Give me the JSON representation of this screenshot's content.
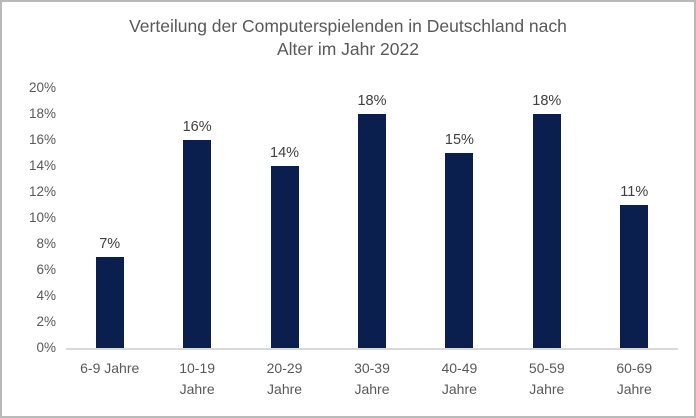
{
  "frame": {
    "background_color": "#ffffff",
    "border_color": "#b9b9b9"
  },
  "chart_data": {
    "type": "bar",
    "title": "Verteilung der Computerspielenden in Deutschland nach Alter im Jahr 2022",
    "title_lines": [
      "Verteilung der Computerspielenden in Deutschland nach",
      "Alter im Jahr 2022"
    ],
    "categories": [
      "6-9 Jahre",
      "10-19 Jahre",
      "20-29 Jahre",
      "30-39 Jahre",
      "40-49 Jahre",
      "50-59 Jahre",
      "60-69 Jahre"
    ],
    "category_labels_displayed": [
      "6-9 Jahre",
      "10-19\nJahre",
      "20-29\nJahre",
      "30-39\nJahre",
      "40-49\nJahre",
      "50-59\nJahre",
      "60-69\nJahre"
    ],
    "values": [
      7,
      16,
      14,
      18,
      15,
      18,
      11
    ],
    "data_labels": [
      "7%",
      "16%",
      "14%",
      "18%",
      "15%",
      "18%",
      "11%"
    ],
    "xlabel": "",
    "ylabel": "",
    "ylim": [
      0,
      20
    ],
    "ytick_step": 2,
    "yticks": [
      "0%",
      "2%",
      "4%",
      "6%",
      "8%",
      "10%",
      "12%",
      "14%",
      "16%",
      "18%",
      "20%"
    ],
    "grid": false,
    "legend": false,
    "unit": "%",
    "colors": {
      "bar": "#0b1f4e",
      "axis_line": "#d9d9d9",
      "title_text": "#595959",
      "tick_label_text": "#595959",
      "data_label_text": "#404040"
    }
  }
}
